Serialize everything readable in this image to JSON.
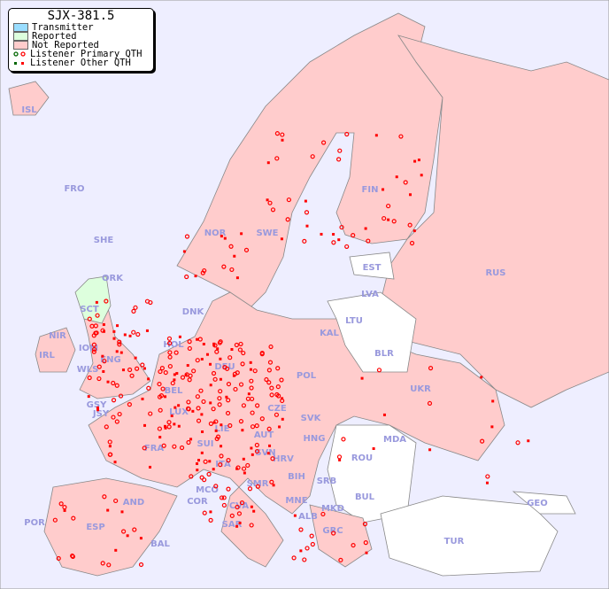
{
  "map": {
    "title": "SJX-381.5",
    "colors": {
      "sea": "#eeeeff",
      "not_reported": "#ffcccc",
      "reported": "#ddffdd",
      "transmitter": "#99ddff",
      "no_data": "#ffffff",
      "marker": "#ff0000",
      "border": "#888888",
      "label": "#9999dd"
    },
    "legend": [
      {
        "label": "Transmitter",
        "type": "swatch",
        "color": "#99ddff"
      },
      {
        "label": "Reported",
        "type": "swatch",
        "color": "#ddffdd"
      },
      {
        "label": "Not Reported",
        "type": "swatch",
        "color": "#ffcccc"
      },
      {
        "label": "Listener Primary QTH",
        "type": "circle"
      },
      {
        "label": "Listener Other QTH",
        "type": "square"
      }
    ],
    "countries": [
      "ISL",
      "FRO",
      "SHE",
      "ORK",
      "SCT",
      "NIR",
      "IRL",
      "IOM",
      "WLS",
      "ENG",
      "GSY",
      "JSY",
      "NOR",
      "SWE",
      "FIN",
      "EST",
      "LVA",
      "LTU",
      "KAL",
      "BLR",
      "RUS",
      "DNK",
      "HOL",
      "BEL",
      "LUX",
      "DEU",
      "POL",
      "CZE",
      "SVK",
      "UKR",
      "MDA",
      "FRA",
      "SUI",
      "LIE",
      "AUT",
      "HNG",
      "ROU",
      "SVN",
      "HRV",
      "BIH",
      "SRB",
      "ITA",
      "MCO",
      "COR",
      "SMR",
      "CVA",
      "MNE",
      "ALB",
      "MKD",
      "BUL",
      "GRC",
      "TUR",
      "GEO",
      "AND",
      "ESP",
      "POR",
      "BAL",
      "SAR"
    ]
  }
}
